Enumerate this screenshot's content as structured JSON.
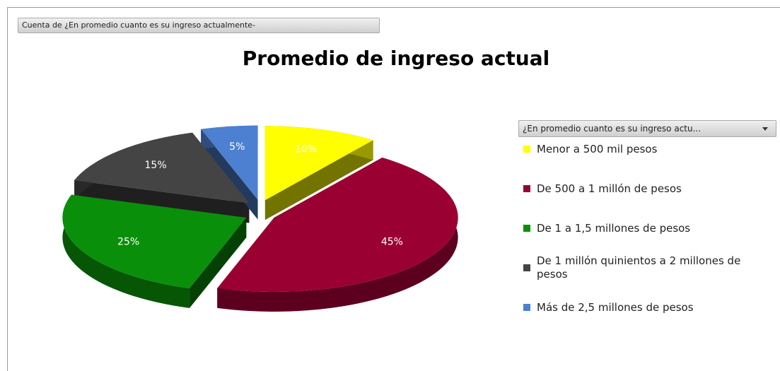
{
  "chart_data": {
    "type": "pie",
    "title": "Promedio de ingreso actual",
    "field_button": "Cuenta de ¿En promedio cuanto es su ingreso actualmente-",
    "legend_title": "¿En promedio cuanto es su ingreso actu...",
    "categories": [
      "Menor a 500 mil pesos",
      "De 500 a 1 millón de pesos",
      "De 1 a 1,5 millones de pesos",
      "De 1 millón quinientos a 2 millones de pesos",
      "Más de 2,5 millones de pesos"
    ],
    "values": [
      10,
      45,
      25,
      15,
      5
    ],
    "value_labels": [
      "10%",
      "45%",
      "25%",
      "15%",
      "5%"
    ],
    "colors": [
      "#ffff00",
      "#9b0033",
      "#0a8f0a",
      "#444444",
      "#4d80d0"
    ],
    "legend": "right"
  }
}
